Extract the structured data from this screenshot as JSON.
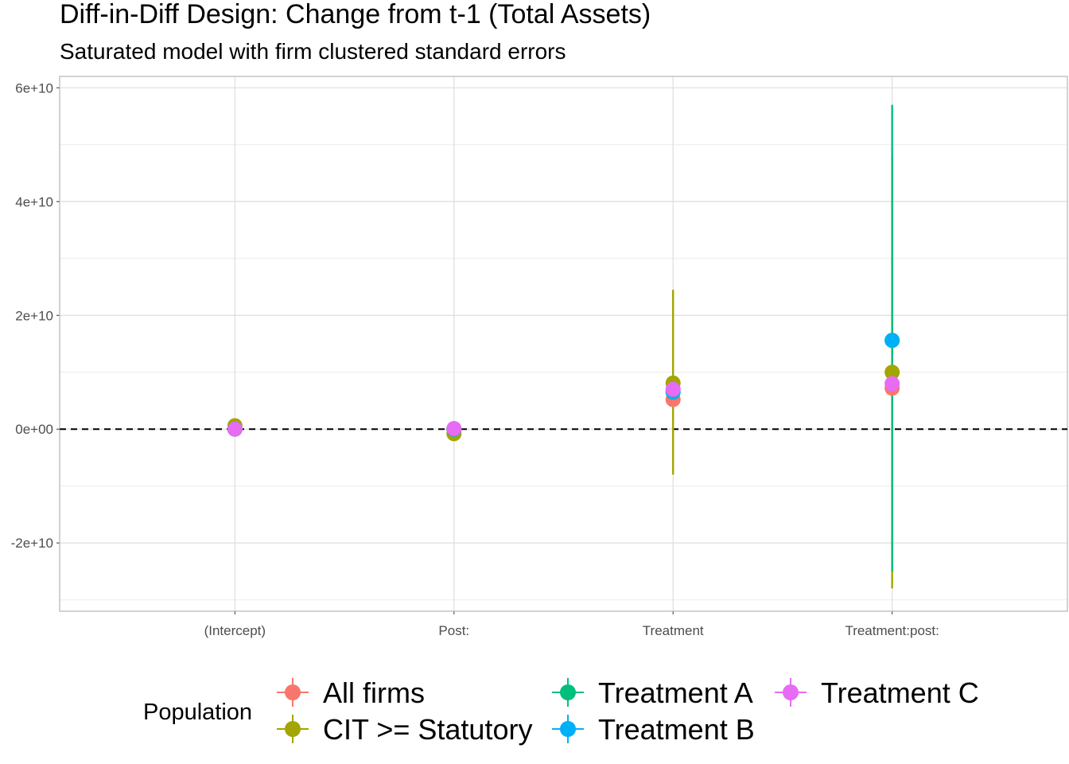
{
  "chart_data": {
    "type": "scatter",
    "title": "Diff-in-Diff Design: Change from t-1 (Total Assets)",
    "subtitle": "Saturated model with firm clustered standard errors",
    "xlabel": "",
    "ylabel": "",
    "categories": [
      "(Intercept)",
      "Post:",
      "Treatment",
      "Treatment:post:"
    ],
    "ylim": [
      -32000000000.0,
      62000000000.0
    ],
    "yticks": [
      -20000000000.0,
      0,
      20000000000.0,
      40000000000.0,
      60000000000.0
    ],
    "ytick_labels": [
      "-2e+10",
      "0e+00",
      "2e+10",
      "4e+10",
      "6e+10"
    ],
    "reference_line": 0,
    "grid": true,
    "legend": {
      "title": "Population",
      "position": "bottom"
    },
    "series": [
      {
        "name": "All firms",
        "color": "#F8766D",
        "estimate": [
          0.0,
          0.0,
          5200000000.0,
          7200000000.0
        ],
        "ci_low": [
          0.0,
          0.0,
          4800000000.0,
          6800000000.0
        ],
        "ci_high": [
          0.0,
          0.0,
          5600000000.0,
          7600000000.0
        ]
      },
      {
        "name": "CIT >= Statutory",
        "color": "#A3A500",
        "estimate": [
          600000000.0,
          -800000000.0,
          8100000000.0,
          10000000000.0
        ],
        "ci_low": [
          200000000.0,
          -1200000000.0,
          -8000000000.0,
          -28000000000.0
        ],
        "ci_high": [
          1000000000.0,
          -400000000.0,
          24500000000.0,
          48000000000.0
        ]
      },
      {
        "name": "Treatment A",
        "color": "#00BF7D",
        "estimate": [
          0.0,
          0.0,
          6500000000.0,
          15600000000.0
        ],
        "ci_low": [
          0.0,
          0.0,
          6100000000.0,
          -25000000000.0
        ],
        "ci_high": [
          0.0,
          0.0,
          6900000000.0,
          57000000000.0
        ]
      },
      {
        "name": "Treatment B",
        "color": "#00B0F6",
        "estimate": [
          0.0,
          0.0,
          6600000000.0,
          15600000000.0
        ],
        "ci_low": [
          0.0,
          0.0,
          6200000000.0,
          15200000000.0
        ],
        "ci_high": [
          0.0,
          0.0,
          7000000000.0,
          16000000000.0
        ]
      },
      {
        "name": "Treatment C",
        "color": "#E76BF3",
        "estimate": [
          0.0,
          100000000.0,
          7000000000.0,
          8000000000.0
        ],
        "ci_low": [
          -300000000.0,
          -300000000.0,
          6600000000.0,
          7600000000.0
        ],
        "ci_high": [
          300000000.0,
          500000000.0,
          7400000000.0,
          8400000000.0
        ]
      }
    ]
  }
}
